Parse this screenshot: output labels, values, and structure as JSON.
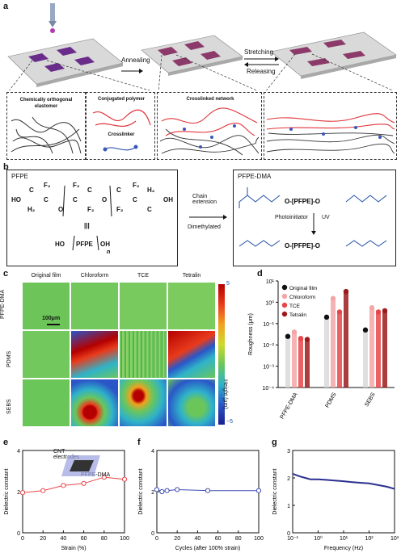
{
  "panel_letters": [
    "a",
    "b",
    "c",
    "d",
    "e",
    "f",
    "g"
  ],
  "panel_a": {
    "annealing": "Annealing",
    "stretching": "Stretching",
    "releasing": "Releasing",
    "box_labels": [
      "Chemically orthogonal elastomer",
      "Conjugated polymer",
      "Crosslinker",
      "Crosslinked network"
    ]
  },
  "panel_b": {
    "pfpe": "PFPE",
    "pfpe_dma": "PFPE-DMA",
    "chain_extension": "Chain extension",
    "dimethylated": "Dimethylated",
    "photoinitiator": "Photoinitiator",
    "uv": "UV",
    "pfpe_core": "PFPE",
    "n": "n"
  },
  "panel_c": {
    "columns": [
      "Original film",
      "Chloroform",
      "TCE",
      "Tetralin"
    ],
    "rows": [
      "PFPE-DMA",
      "PDMS",
      "SEBS"
    ],
    "scale_bar": "100μm",
    "colorbar_label": "Height (μm)",
    "colorbar_max": "5",
    "colorbar_min": "−5",
    "colorbar_colors": [
      "#b40000",
      "#e83b1c",
      "#f2a11f",
      "#cfd92a",
      "#6bc65a",
      "#2fb3c9",
      "#2a56c8",
      "#1b1f8f"
    ]
  },
  "panel_e": {
    "label_cnt": "CNT electrodes",
    "label_pfpe": "PFPE-DMA"
  },
  "chart_data": [
    {
      "type": "bar",
      "panel": "d",
      "ylabel": "Roughness (μm)",
      "yscale": "log",
      "ylim": [
        0.0001,
        10
      ],
      "yticks": [
        "10⁻⁴",
        "10⁻³",
        "10⁻²",
        "10⁻¹",
        "10⁰",
        "10¹"
      ],
      "categories": [
        "PFPE-DMA",
        "PDMS",
        "SEBS"
      ],
      "series": [
        {
          "name": "Original film",
          "color": "#111111",
          "values": [
            0.025,
            0.2,
            0.05
          ]
        },
        {
          "name": "Chloroform",
          "color": "#f4a6a6",
          "values": [
            0.04,
            1.5,
            0.55
          ]
        },
        {
          "name": "TCE",
          "color": "#e8474a",
          "values": [
            0.02,
            0.35,
            0.35
          ]
        },
        {
          "name": "Tetralin",
          "color": "#9b1b1b",
          "values": [
            0.018,
            3.2,
            0.4
          ]
        }
      ],
      "legend_position": "top-left"
    },
    {
      "type": "line",
      "panel": "e",
      "xlabel": "Strain (%)",
      "ylabel": "Dielectric constant",
      "x": [
        0,
        20,
        40,
        60,
        80,
        100
      ],
      "y": [
        1.95,
        2.05,
        2.3,
        2.4,
        2.7,
        2.6
      ],
      "xlim": [
        0,
        100
      ],
      "ylim": [
        0,
        4
      ],
      "xticks": [
        0,
        20,
        40,
        60,
        80,
        100
      ],
      "yticks": [
        0,
        2,
        4
      ],
      "color": "#e8474a"
    },
    {
      "type": "line",
      "panel": "f",
      "xlabel": "Cycles (after 100% strain)",
      "ylabel": "Dielectric constant",
      "x": [
        0,
        5,
        10,
        20,
        50,
        100
      ],
      "y": [
        2.1,
        2.0,
        2.05,
        2.1,
        2.05,
        2.05
      ],
      "xlim": [
        0,
        100
      ],
      "ylim": [
        0,
        4
      ],
      "xticks": [
        0,
        20,
        40,
        60,
        80,
        100
      ],
      "yticks": [
        0,
        2,
        4
      ],
      "color": "#3d4cb5"
    },
    {
      "type": "line",
      "panel": "g",
      "xlabel": "Frequency (Hz)",
      "ylabel": "Dielectric constant",
      "xscale": "log",
      "x": [
        0.1,
        0.2,
        0.5,
        1,
        2,
        5,
        10,
        20,
        50,
        100,
        200,
        500,
        1000
      ],
      "y": [
        2.15,
        2.05,
        1.95,
        1.95,
        1.93,
        1.9,
        1.88,
        1.85,
        1.82,
        1.8,
        1.75,
        1.68,
        1.6
      ],
      "xlim": [
        0.1,
        1000
      ],
      "ylim": [
        0,
        3
      ],
      "xticks": [
        "10⁻¹",
        "10⁰",
        "10¹",
        "10²",
        "10³"
      ],
      "yticks": [
        0,
        1,
        2,
        3
      ],
      "color": "#2a2f8f"
    }
  ]
}
